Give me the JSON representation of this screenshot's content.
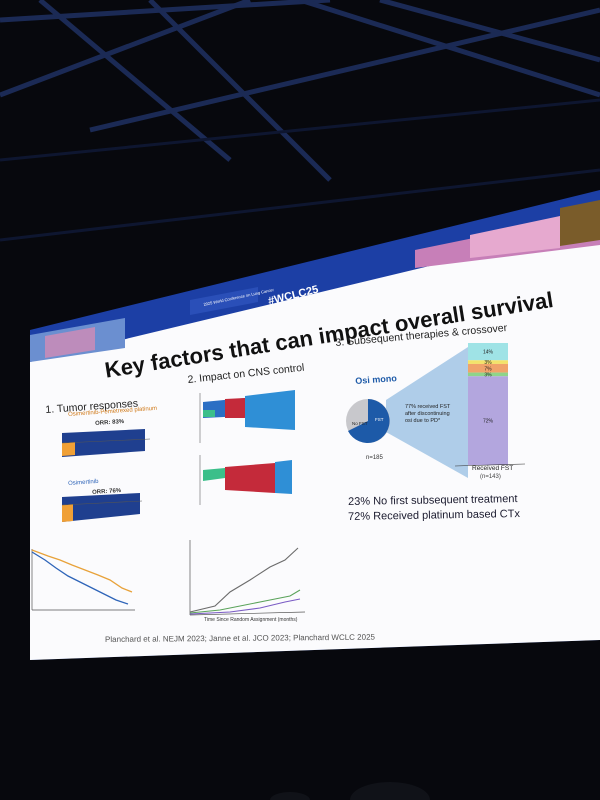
{
  "slide": {
    "hashtag": "#WCLC25",
    "conference": "2025 World Conference on Lung Cancer",
    "title": "Key factors that can impact overall survival",
    "section1": {
      "heading": "1. Tumor responses",
      "arm1_name": "Osimertinib-Pemetrexed platinum",
      "arm1_orr": "ORR: 83%",
      "arm2_name": "Osimertinib",
      "arm2_orr": "ORR: 76%"
    },
    "section2": {
      "heading": "2. Impact on CNS control",
      "xlabel": "Time Since Random Assignment (months)"
    },
    "section3": {
      "heading": "3. Subsequent therapies & crossover",
      "cohort": "Osi mono",
      "pie_no_fst": "No FST",
      "pie_fst": "FST",
      "n_total": "n=185",
      "callout": "77% received FST after discontinuing osi due to PD*",
      "bar_segments": [
        {
          "label": "14%",
          "value": 14,
          "color": "#9fe3e6"
        },
        {
          "label": "3%",
          "value": 3,
          "color": "#f3e36b"
        },
        {
          "label": "7%",
          "value": 7,
          "color": "#f0a36a"
        },
        {
          "label": "3%",
          "value": 3,
          "color": "#8fd48a"
        },
        {
          "label": "72%",
          "value": 72,
          "color": "#b3a6de"
        }
      ],
      "bar_caption": "Received FST",
      "bar_n": "(n=143)",
      "stat1": "23% No first subsequent treatment",
      "stat2": "72% Received platinum based CTx"
    },
    "references": "Planchard et al. NEJM 2023; Janne et al. JCO 2023; Planchard WCLC 2025"
  }
}
